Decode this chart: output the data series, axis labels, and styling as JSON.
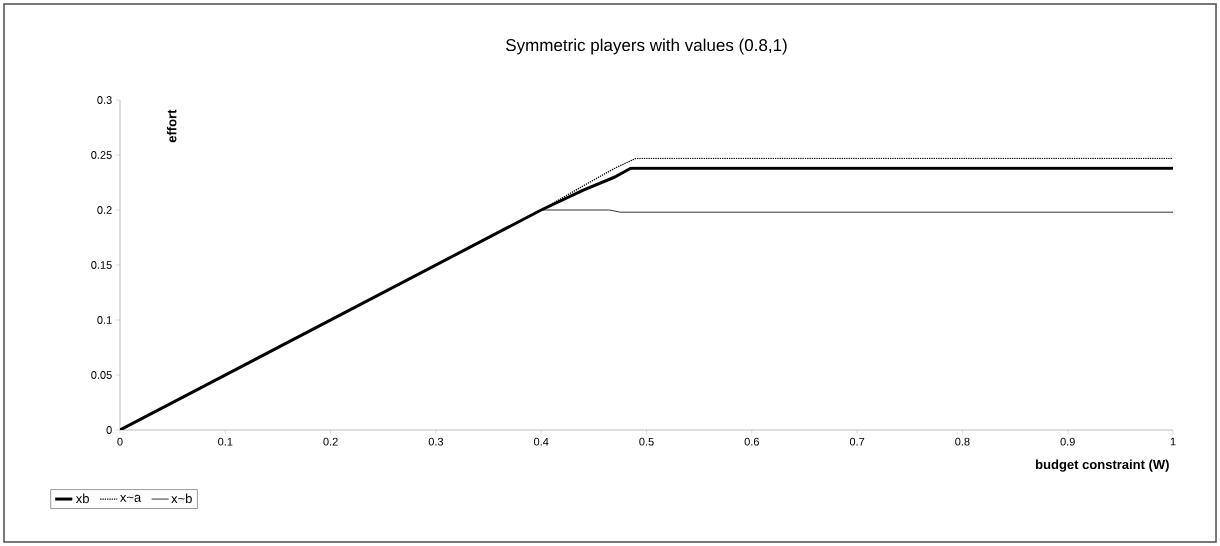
{
  "chart_data": {
    "type": "line",
    "title": "Symmetric players with values (0.8,1)",
    "xlabel": "budget constraint  (W)",
    "ylabel": "effort",
    "xlim": [
      0,
      1
    ],
    "ylim": [
      0,
      0.3
    ],
    "xticks": [
      0,
      0.1,
      0.2,
      0.3,
      0.4,
      0.5,
      0.6,
      0.7,
      0.8,
      0.9,
      1
    ],
    "yticks": [
      0,
      0.05,
      0.1,
      0.15,
      0.2,
      0.25,
      0.3
    ],
    "grid": false,
    "legend": "bottom left",
    "marker": "none",
    "series": [
      {
        "name": "xb",
        "color": "#000000",
        "line_style": "solid",
        "x": [
          0,
          0.4,
          0.44,
          0.47,
          0.485,
          1
        ],
        "values": [
          0,
          0.2,
          0.218,
          0.23,
          0.238,
          0.238
        ]
      },
      {
        "name": "x~a",
        "color": "#000000",
        "line_style": "dotted",
        "x": [
          0,
          0.4,
          0.44,
          0.47,
          0.49,
          1
        ],
        "values": [
          0,
          0.2,
          0.222,
          0.238,
          0.247,
          0.247
        ]
      },
      {
        "name": "x~b",
        "color": "#000000",
        "line_style": "solid",
        "x": [
          0,
          0.4,
          0.465,
          0.475,
          1
        ],
        "values": [
          0,
          0.2,
          0.2,
          0.198,
          0.198
        ]
      }
    ]
  }
}
